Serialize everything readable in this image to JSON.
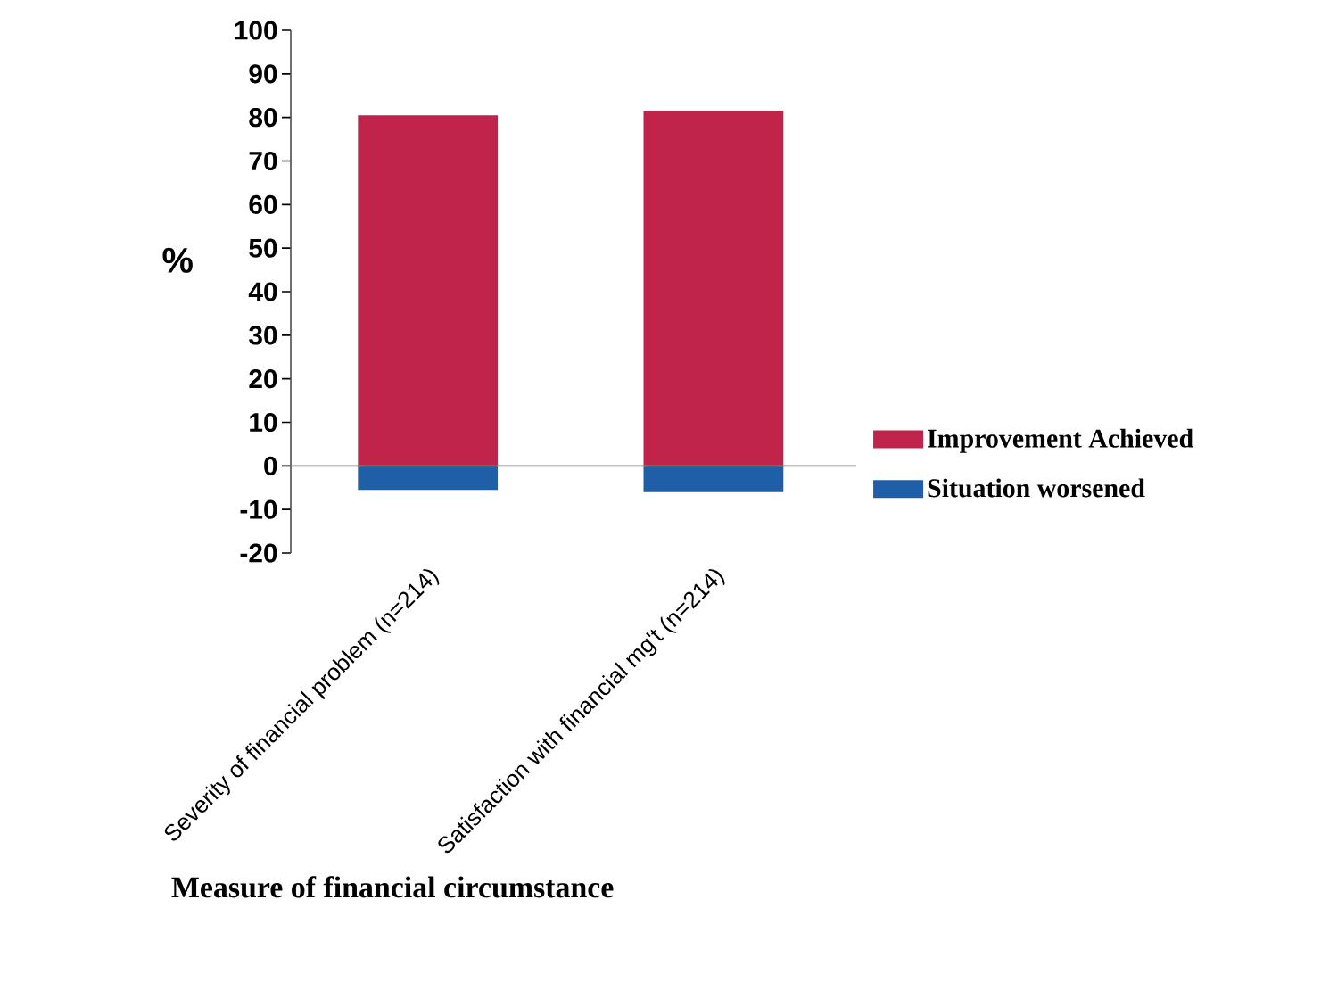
{
  "chart_data": {
    "type": "bar",
    "xlabel": "Measure of financial circumstance",
    "ylabel": "%",
    "categories": [
      "Severity of financial problem (n=214)",
      "Satisfaction with financial mg't (n=214)"
    ],
    "stacked": true,
    "series": [
      {
        "name": "Improvement Achieved",
        "color": "#c0244a",
        "values": [
          80.5,
          81.5
        ]
      },
      {
        "name": "Situation worsened",
        "color": "#1f5fa8",
        "values": [
          -5.5,
          -6
        ]
      }
    ],
    "ylim": [
      -20,
      100
    ],
    "yticks": [
      -20,
      -10,
      0,
      10,
      20,
      30,
      40,
      50,
      60,
      70,
      80,
      90,
      100
    ],
    "legend": "right"
  }
}
